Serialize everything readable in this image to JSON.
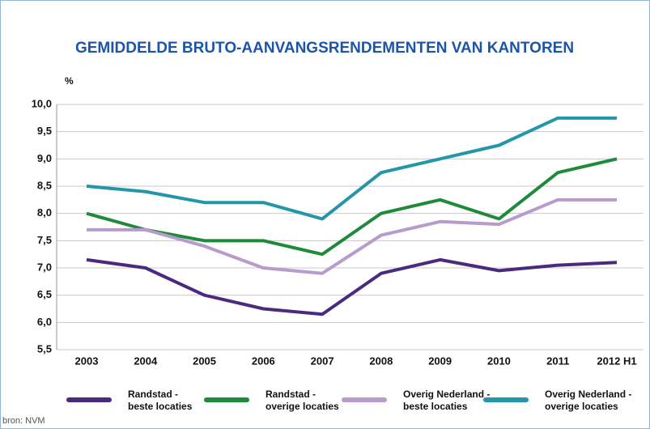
{
  "chart_data": {
    "type": "line",
    "title": "GEMIDDELDE BRUTO-AANVANGSRENDEMENTEN VAN KANTOREN",
    "ylabel": "%",
    "source": "bron: NVM",
    "categories": [
      "2003",
      "2004",
      "2005",
      "2006",
      "2007",
      "2008",
      "2009",
      "2010",
      "2011",
      "2012 H1"
    ],
    "ylim": [
      5.5,
      10.0
    ],
    "yticks": [
      {
        "value": 5.5,
        "label": "5,5"
      },
      {
        "value": 6.0,
        "label": "6,0"
      },
      {
        "value": 6.5,
        "label": "6,5"
      },
      {
        "value": 7.0,
        "label": "7,0"
      },
      {
        "value": 7.5,
        "label": "7,5"
      },
      {
        "value": 8.0,
        "label": "8,0"
      },
      {
        "value": 8.5,
        "label": "8,5"
      },
      {
        "value": 9.0,
        "label": "9,0"
      },
      {
        "value": 9.5,
        "label": "9,5"
      },
      {
        "value": 10.0,
        "label": "10,0"
      }
    ],
    "grid": true,
    "legend": "bottom",
    "series": [
      {
        "name": "Randstad -\nbeste locaties",
        "color": "#4a2a7f",
        "values": [
          7.15,
          7.0,
          6.5,
          6.25,
          6.15,
          6.9,
          7.15,
          6.95,
          7.05,
          7.1
        ]
      },
      {
        "name": "Randstad -\noverige locaties",
        "color": "#1f8a3b",
        "values": [
          8.0,
          7.7,
          7.5,
          7.5,
          7.25,
          8.0,
          8.25,
          7.9,
          8.75,
          9.0
        ]
      },
      {
        "name": "Overig Nederland -\nbeste locaties",
        "color": "#b79bcc",
        "values": [
          7.7,
          7.7,
          7.4,
          7.0,
          6.9,
          7.6,
          7.85,
          7.8,
          8.25,
          8.25
        ]
      },
      {
        "name": "Overig Nederland -\noverige locaties",
        "color": "#2396a9",
        "values": [
          8.5,
          8.4,
          8.2,
          8.2,
          7.9,
          8.75,
          9.0,
          9.25,
          9.75,
          9.75
        ]
      }
    ]
  }
}
